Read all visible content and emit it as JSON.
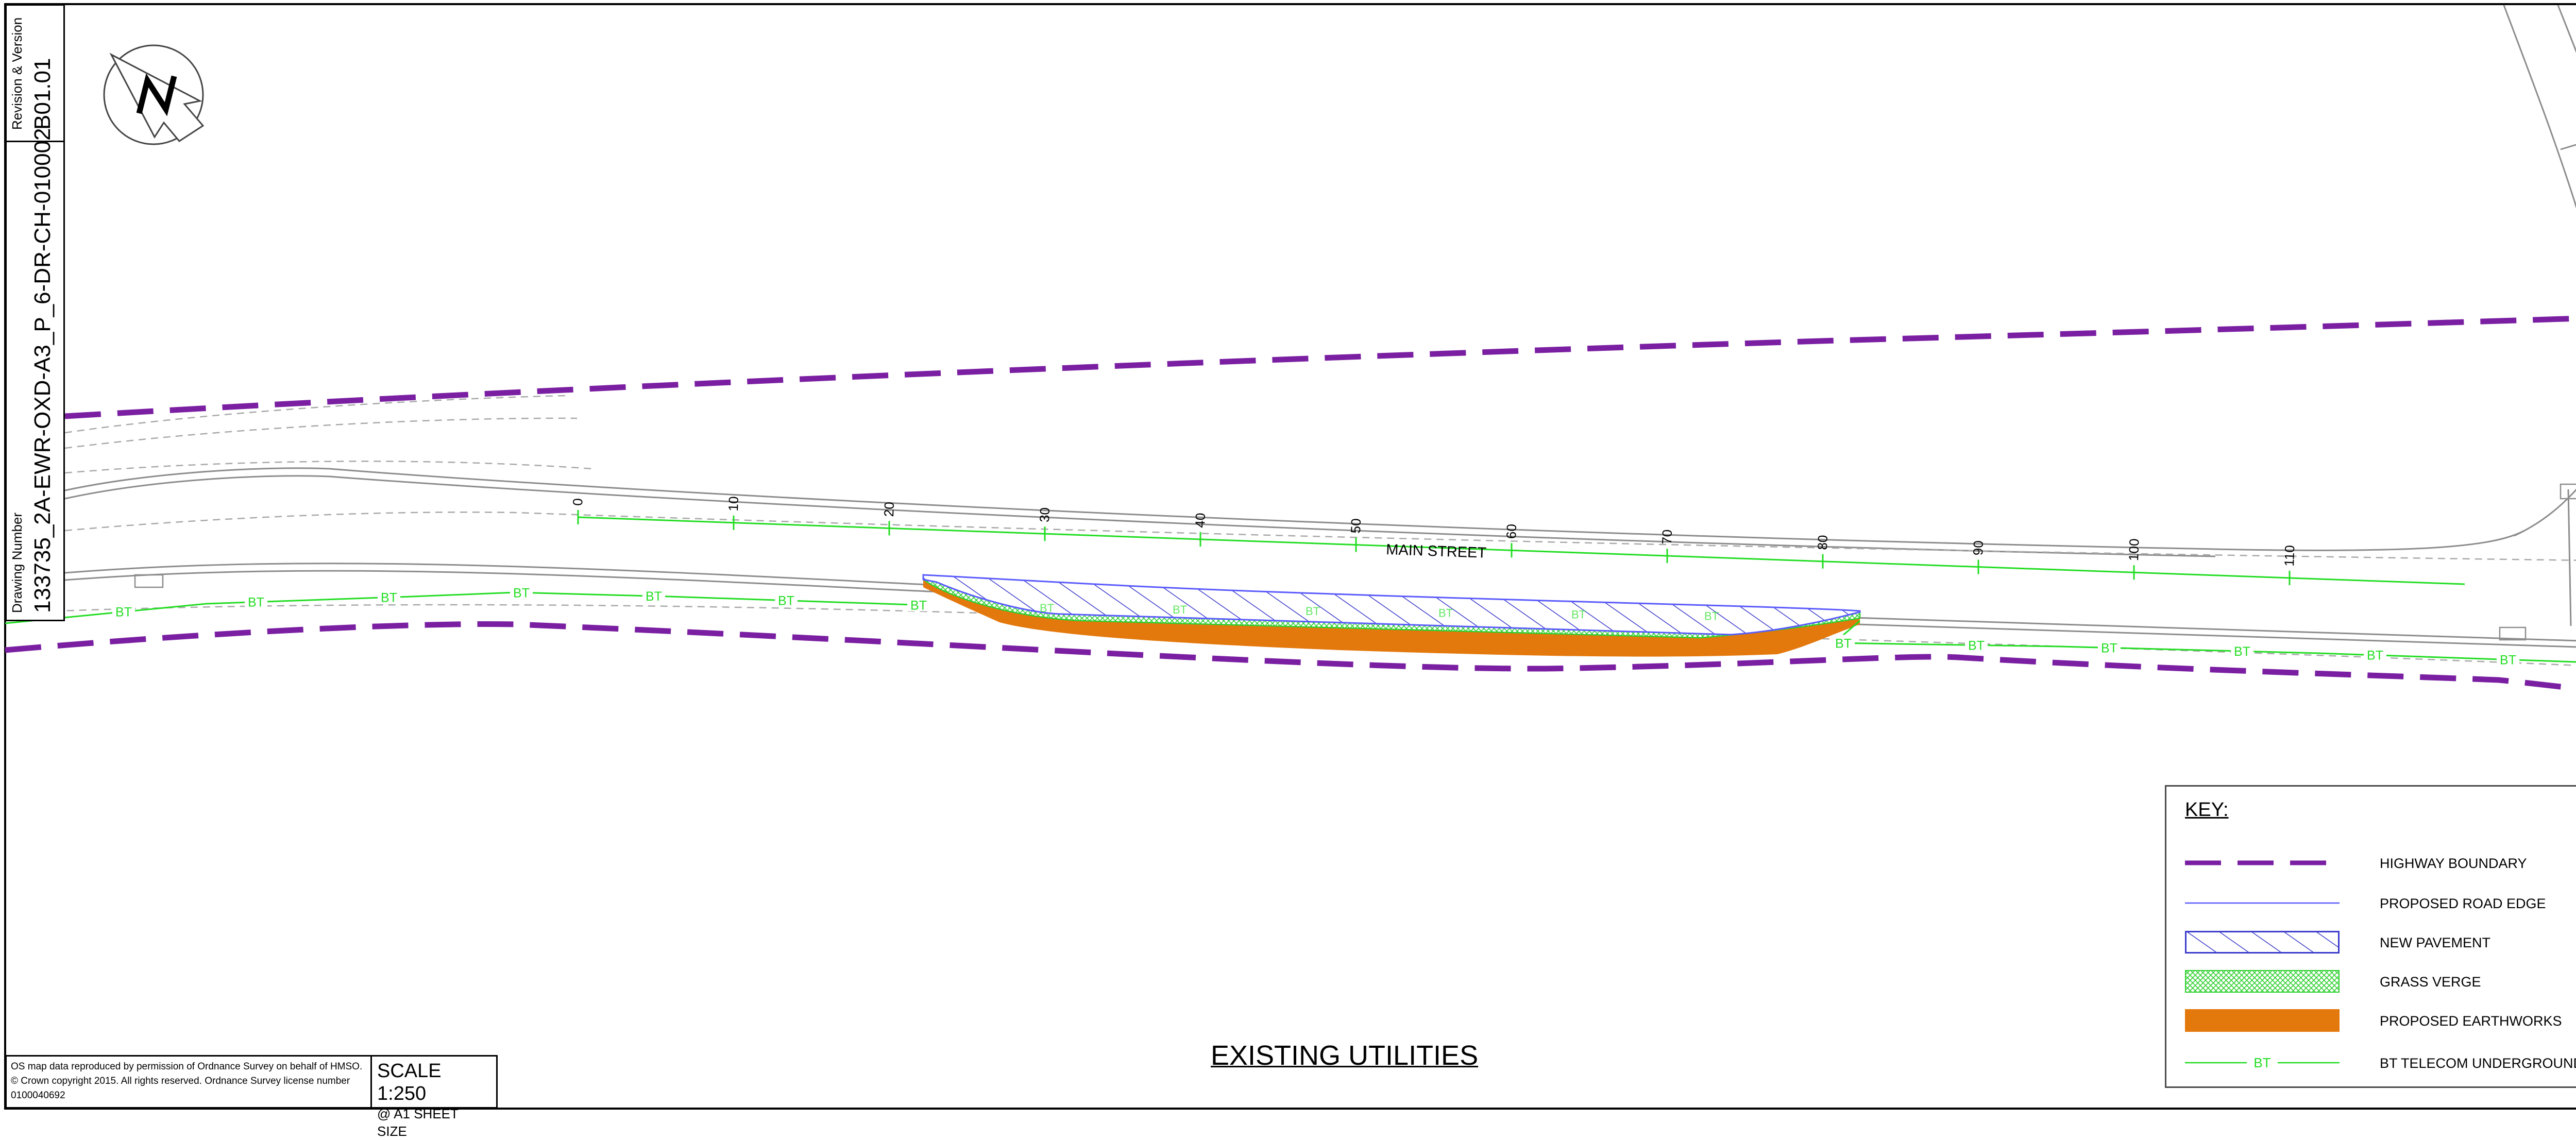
{
  "title_block": {
    "revision_label": "Revision & Version",
    "revision_value": "B01.01",
    "drawing_number_label": "Drawing Number",
    "drawing_number_value": "133735_2A-EWR-OXD-A3_P_6-DR-CH-010002"
  },
  "map": {
    "street_name": "MAIN STREET",
    "chainage_labels": [
      "0",
      "10",
      "20",
      "30",
      "40",
      "50",
      "60",
      "70",
      "80",
      "90",
      "100",
      "110"
    ],
    "bt_label": "BT",
    "colors": {
      "highway_boundary": "#7a1fa2",
      "road_edge": "#5a5aff",
      "pavement_hatch": "#3a3acc",
      "grass_verge": "#2fd02f",
      "earthworks": "#e3780c",
      "bt_cable": "#22dd22",
      "base_map": "#8c8c8c"
    }
  },
  "footer": {
    "os_note": "OS map data reproduced by permission of Ordnance Survey on behalf of HMSO. © Crown copyright 2015. All rights reserved. Ordnance Survey license number 0100040692",
    "scale_main": "SCALE 1:250",
    "scale_sub": "@ A1 SHEET SIZE",
    "sheet_title": "EXISTING UTILITIES"
  },
  "key": {
    "title": "KEY:",
    "items": [
      {
        "label": "HIGHWAY BOUNDARY"
      },
      {
        "label": "PROPOSED ROAD EDGE"
      },
      {
        "label": "NEW PAVEMENT"
      },
      {
        "label": "GRASS VERGE"
      },
      {
        "label": "PROPOSED EARTHWORKS"
      },
      {
        "label": "BT TELECOM UNDERGROUND CABLES"
      }
    ],
    "bt_swatch_label": "BT"
  }
}
